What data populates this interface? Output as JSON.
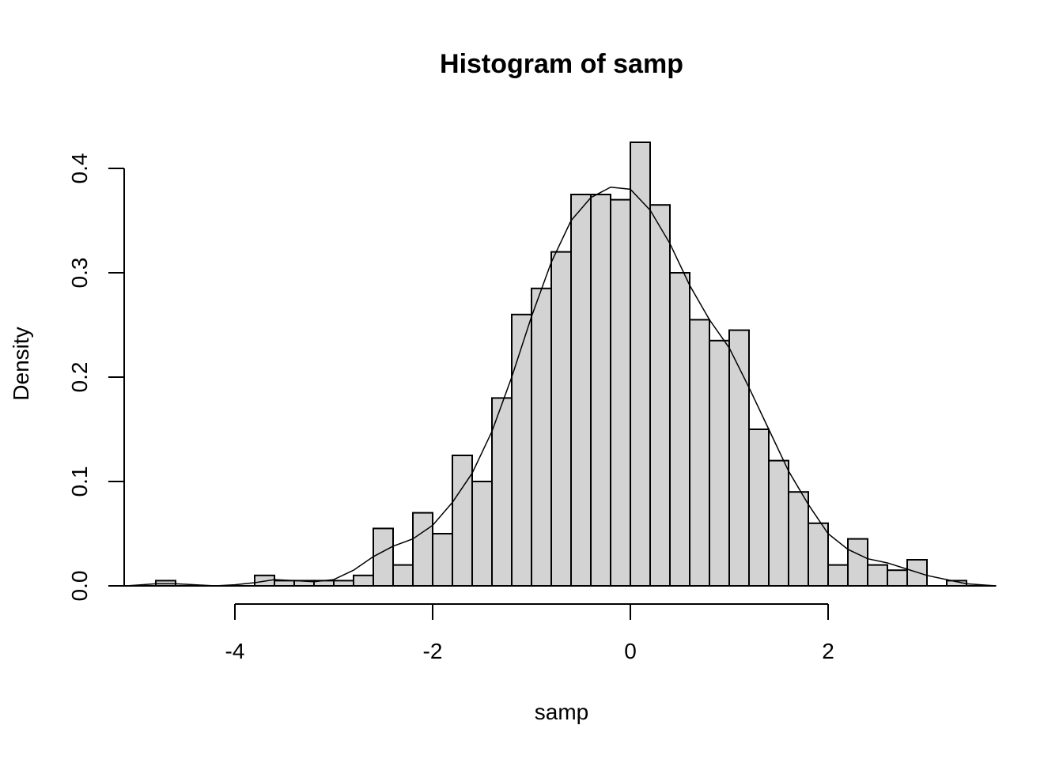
{
  "chart_data": {
    "type": "histogram",
    "title": "Histogram of samp",
    "xlabel": "samp",
    "ylabel": "Density",
    "xlim": [
      -5.3,
      3.7
    ],
    "ylim": [
      0,
      0.4
    ],
    "x_ticks": [
      -4,
      -2,
      0,
      2
    ],
    "x_tick_labels": [
      "-4",
      "-2",
      "0",
      "2"
    ],
    "y_ticks": [
      0.0,
      0.1,
      0.2,
      0.3,
      0.4
    ],
    "y_tick_labels": [
      "0.0",
      "0.1",
      "0.2",
      "0.3",
      "0.4"
    ],
    "bin_width": 0.2,
    "bins": [
      {
        "start": -4.8,
        "end": -4.6,
        "density": 0.005
      },
      {
        "start": -4.6,
        "end": -4.4,
        "density": 0.0
      },
      {
        "start": -4.4,
        "end": -4.2,
        "density": 0.0
      },
      {
        "start": -4.2,
        "end": -4.0,
        "density": 0.0
      },
      {
        "start": -4.0,
        "end": -3.8,
        "density": 0.0
      },
      {
        "start": -3.8,
        "end": -3.6,
        "density": 0.01
      },
      {
        "start": -3.6,
        "end": -3.4,
        "density": 0.005
      },
      {
        "start": -3.4,
        "end": -3.2,
        "density": 0.005
      },
      {
        "start": -3.2,
        "end": -3.0,
        "density": 0.005
      },
      {
        "start": -3.0,
        "end": -2.8,
        "density": 0.005
      },
      {
        "start": -2.8,
        "end": -2.6,
        "density": 0.01
      },
      {
        "start": -2.6,
        "end": -2.4,
        "density": 0.055
      },
      {
        "start": -2.4,
        "end": -2.2,
        "density": 0.02
      },
      {
        "start": -2.2,
        "end": -2.0,
        "density": 0.07
      },
      {
        "start": -2.0,
        "end": -1.8,
        "density": 0.05
      },
      {
        "start": -1.8,
        "end": -1.6,
        "density": 0.125
      },
      {
        "start": -1.6,
        "end": -1.4,
        "density": 0.1
      },
      {
        "start": -1.4,
        "end": -1.2,
        "density": 0.18
      },
      {
        "start": -1.2,
        "end": -1.0,
        "density": 0.26
      },
      {
        "start": -1.0,
        "end": -0.8,
        "density": 0.285
      },
      {
        "start": -0.8,
        "end": -0.6,
        "density": 0.32
      },
      {
        "start": -0.6,
        "end": -0.4,
        "density": 0.375
      },
      {
        "start": -0.4,
        "end": -0.2,
        "density": 0.375
      },
      {
        "start": -0.2,
        "end": 0.0,
        "density": 0.37
      },
      {
        "start": 0.0,
        "end": 0.2,
        "density": 0.425
      },
      {
        "start": 0.2,
        "end": 0.4,
        "density": 0.365
      },
      {
        "start": 0.4,
        "end": 0.6,
        "density": 0.3
      },
      {
        "start": 0.6,
        "end": 0.8,
        "density": 0.255
      },
      {
        "start": 0.8,
        "end": 1.0,
        "density": 0.235
      },
      {
        "start": 1.0,
        "end": 1.2,
        "density": 0.245
      },
      {
        "start": 1.2,
        "end": 1.4,
        "density": 0.15
      },
      {
        "start": 1.4,
        "end": 1.6,
        "density": 0.12
      },
      {
        "start": 1.6,
        "end": 1.8,
        "density": 0.09
      },
      {
        "start": 1.8,
        "end": 2.0,
        "density": 0.06
      },
      {
        "start": 2.0,
        "end": 2.2,
        "density": 0.02
      },
      {
        "start": 2.2,
        "end": 2.4,
        "density": 0.045
      },
      {
        "start": 2.4,
        "end": 2.6,
        "density": 0.02
      },
      {
        "start": 2.6,
        "end": 2.8,
        "density": 0.015
      },
      {
        "start": 2.8,
        "end": 3.0,
        "density": 0.025
      },
      {
        "start": 3.0,
        "end": 3.2,
        "density": 0.0
      },
      {
        "start": 3.2,
        "end": 3.4,
        "density": 0.005
      }
    ],
    "density_curve": {
      "x": [
        -5.1,
        -4.8,
        -4.6,
        -4.4,
        -4.2,
        -4.0,
        -3.8,
        -3.6,
        -3.4,
        -3.2,
        -3.0,
        -2.8,
        -2.6,
        -2.4,
        -2.2,
        -2.0,
        -1.8,
        -1.6,
        -1.4,
        -1.2,
        -1.0,
        -0.8,
        -0.6,
        -0.4,
        -0.2,
        0.0,
        0.2,
        0.4,
        0.6,
        0.8,
        1.0,
        1.2,
        1.4,
        1.6,
        1.8,
        2.0,
        2.2,
        2.4,
        2.6,
        2.8,
        3.0,
        3.2,
        3.4,
        3.7
      ],
      "y": [
        0.0,
        0.002,
        0.002,
        0.001,
        0.0,
        0.001,
        0.003,
        0.006,
        0.005,
        0.004,
        0.006,
        0.015,
        0.028,
        0.038,
        0.045,
        0.058,
        0.08,
        0.108,
        0.148,
        0.2,
        0.258,
        0.31,
        0.35,
        0.372,
        0.382,
        0.38,
        0.36,
        0.328,
        0.288,
        0.255,
        0.228,
        0.19,
        0.15,
        0.11,
        0.078,
        0.05,
        0.035,
        0.026,
        0.022,
        0.016,
        0.01,
        0.006,
        0.002,
        0.0
      ]
    }
  }
}
